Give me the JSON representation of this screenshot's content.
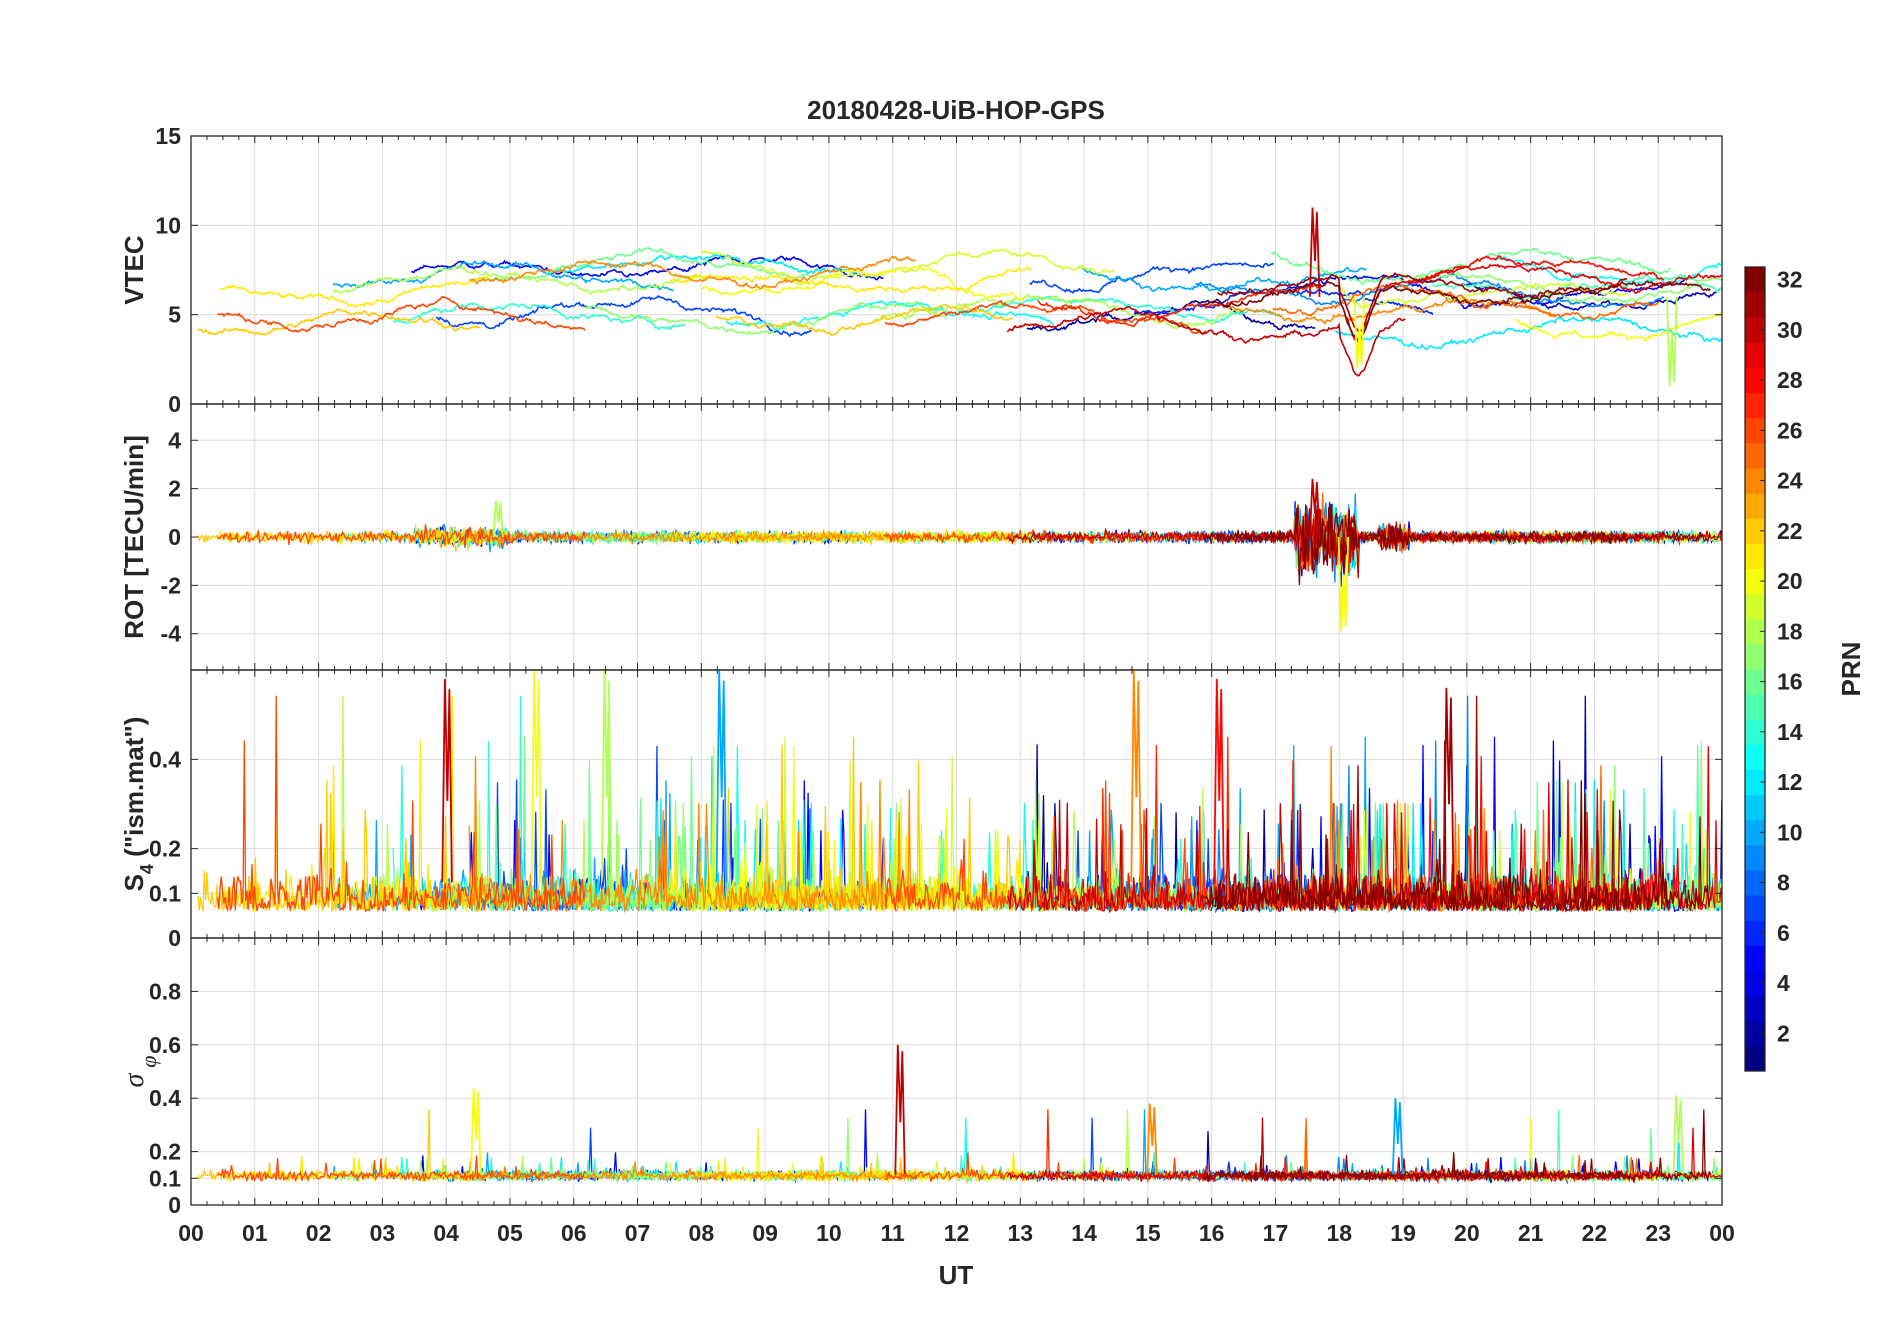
{
  "chart_data": {
    "type": "line",
    "title": "20180428-UiB-HOP-GPS",
    "xlabel": "UT",
    "x_ticks": [
      "00",
      "01",
      "02",
      "03",
      "04",
      "05",
      "06",
      "07",
      "08",
      "09",
      "10",
      "11",
      "12",
      "13",
      "14",
      "15",
      "16",
      "17",
      "18",
      "19",
      "20",
      "21",
      "22",
      "23",
      "00"
    ],
    "x_range_hours": [
      0,
      24
    ],
    "series_note": "One trace per GPS PRN (1-32), colored by PRN on the jet colorbar",
    "panels": [
      {
        "id": "vtec",
        "ylabel": "VTEC",
        "ylim": [
          0,
          15
        ],
        "yticks": [
          0,
          5,
          10,
          15
        ],
        "yticklabels": [
          "0",
          "5",
          "10",
          "15"
        ],
        "typical_range": [
          4,
          8
        ],
        "events": [
          {
            "x": 17.6,
            "y": 11,
            "note": "peak"
          },
          {
            "x": 18.3,
            "y": 2,
            "note": "dip"
          },
          {
            "x": 23.2,
            "y": 1,
            "note": "min"
          }
        ]
      },
      {
        "id": "rot",
        "ylabel": "ROT [TECU/min]",
        "ylim": [
          -5.5,
          5.5
        ],
        "yticks": [
          -4,
          -2,
          0,
          2,
          4
        ],
        "yticklabels": [
          "-4",
          "-2",
          "0",
          "2",
          "4"
        ],
        "typical_range": [
          -0.4,
          0.4
        ],
        "events": [
          {
            "x": 17.6,
            "y": 2.4,
            "note": "disturbance max"
          },
          {
            "x": 18.05,
            "y": -3.9,
            "note": "disturbance min"
          },
          {
            "x": 4.8,
            "y": 1.5,
            "note": "spike"
          }
        ]
      },
      {
        "id": "s4",
        "ylabel": "S4 (\"ism.mat\")",
        "ylabel_base": "S",
        "ylabel_sub": "4",
        "ylabel_rest": " (\"ism.mat\")",
        "ylim": [
          0,
          0.6
        ],
        "yticks": [
          0,
          0.1,
          0.2,
          0.4
        ],
        "yticklabels": [
          "0",
          "0.1",
          "0.2",
          "0.4"
        ],
        "typical_range": [
          0.05,
          0.2
        ],
        "events": [
          {
            "x": 4.0,
            "y": 0.58,
            "note": "peak"
          },
          {
            "x": 5.4,
            "y": 0.6,
            "note": "peak"
          },
          {
            "x": 6.5,
            "y": 0.6,
            "note": "peak"
          },
          {
            "x": 8.3,
            "y": 0.6,
            "note": "peak"
          },
          {
            "x": 14.8,
            "y": 0.6,
            "note": "peak"
          },
          {
            "x": 16.1,
            "y": 0.58,
            "note": "peak"
          },
          {
            "x": 19.7,
            "y": 0.56,
            "note": "peak"
          }
        ]
      },
      {
        "id": "sigma_phi",
        "ylabel": "σ φ",
        "ylabel_base": "σ",
        "ylabel_sub": "φ",
        "ylim": [
          0,
          1
        ],
        "yticks": [
          0,
          0.1,
          0.2,
          0.4,
          0.6,
          0.8
        ],
        "yticklabels": [
          "0",
          "0.1",
          "0.2",
          "0.4",
          "0.6",
          "0.8"
        ],
        "typical_range": [
          0.08,
          0.15
        ],
        "events": [
          {
            "x": 11.1,
            "y": 0.6,
            "note": "peak"
          },
          {
            "x": 4.45,
            "y": 0.44,
            "note": "peak"
          },
          {
            "x": 23.3,
            "y": 0.41,
            "note": "peak"
          },
          {
            "x": 18.9,
            "y": 0.4,
            "note": "peak"
          },
          {
            "x": 15.05,
            "y": 0.38,
            "note": "peak"
          }
        ]
      }
    ],
    "colorbar": {
      "label": "PRN",
      "range": [
        1,
        32
      ],
      "colormap": "jet",
      "ticks": [
        "2",
        "4",
        "6",
        "8",
        "10",
        "12",
        "14",
        "16",
        "18",
        "20",
        "22",
        "24",
        "26",
        "28",
        "30",
        "32"
      ]
    }
  }
}
